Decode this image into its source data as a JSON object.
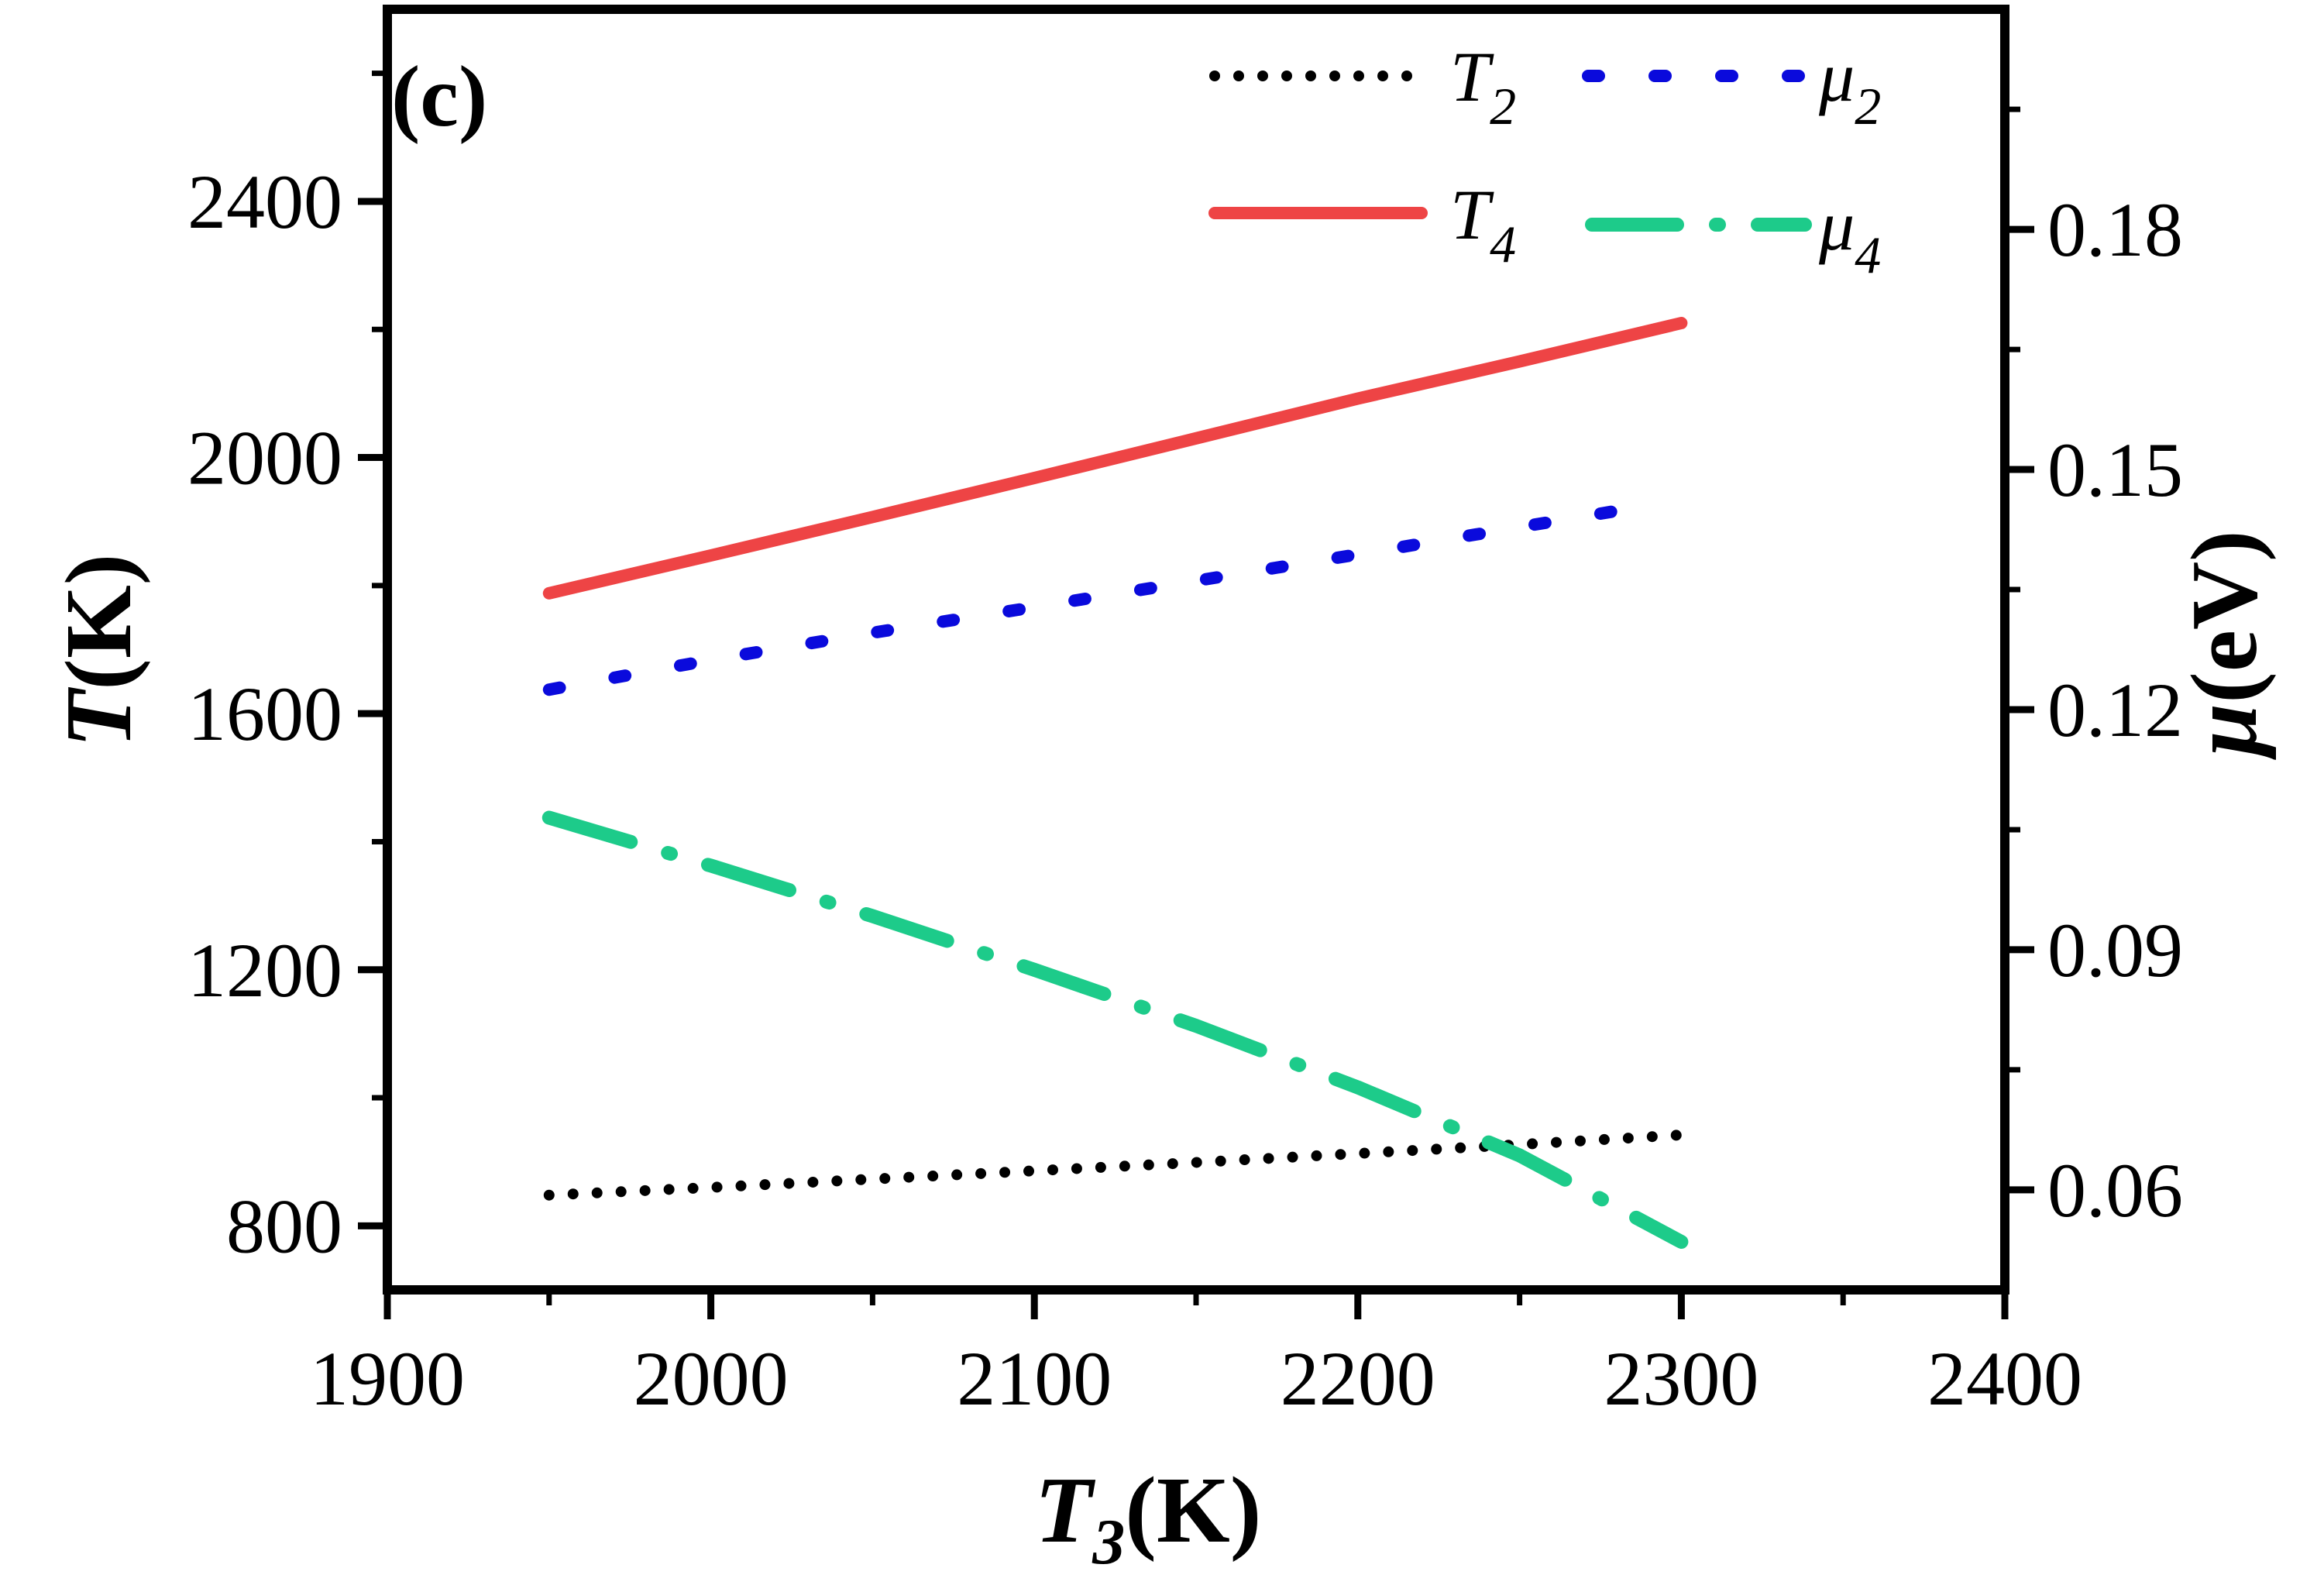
{
  "chart_data": {
    "type": "line",
    "panel_label": "(c)",
    "x_axis": {
      "label_main": "T",
      "label_sub": "3",
      "label_unit": "(K)",
      "range": [
        1900,
        2400
      ],
      "ticks": [
        1900,
        2000,
        2100,
        2200,
        2300,
        2400
      ],
      "tick_labels": [
        "1900",
        "2000",
        "2100",
        "2200",
        "2300",
        "2400"
      ]
    },
    "y_left": {
      "label_main": "T",
      "label_unit": "(K)",
      "range": [
        700,
        2700
      ],
      "ticks": [
        800,
        1200,
        1600,
        2000,
        2400
      ],
      "tick_labels": [
        "800",
        "1200",
        "1600",
        "2000",
        "2400"
      ]
    },
    "y_right": {
      "label_main": "μ",
      "label_unit": "(eV)",
      "range": [
        0.0475,
        0.2075
      ],
      "ticks": [
        0.06,
        0.09,
        0.12,
        0.15,
        0.18
      ],
      "tick_labels": [
        "0.06",
        "0.09",
        "0.12",
        "0.15",
        "0.18"
      ]
    },
    "series": [
      {
        "name": "T2",
        "legend_main": "T",
        "legend_sub": "2",
        "axis": "left",
        "style": "dotted",
        "color": "#000000",
        "x": [
          1950,
          2000,
          2050,
          2100,
          2150,
          2200,
          2250,
          2300
        ],
        "y": [
          848,
          860,
          873,
          886,
          899,
          913,
          927,
          942
        ]
      },
      {
        "name": "T4",
        "legend_main": "T",
        "legend_sub": "4",
        "axis": "left",
        "style": "solid",
        "color": "#EE4445",
        "x": [
          1950,
          2000,
          2050,
          2100,
          2150,
          2200,
          2250,
          2300
        ],
        "y": [
          1788,
          1847,
          1907,
          1968,
          2030,
          2092,
          2150,
          2210
        ]
      },
      {
        "name": "mu2",
        "legend_main": "μ",
        "legend_sub": "2",
        "axis": "right",
        "style": "dashed",
        "color": "#0A0ADC",
        "x": [
          1950,
          2000,
          2050,
          2100,
          2150,
          2200,
          2250,
          2290
        ],
        "y": [
          0.1225,
          0.1262,
          0.1296,
          0.1328,
          0.1361,
          0.1394,
          0.1428,
          0.1455
        ]
      },
      {
        "name": "mu4",
        "legend_main": "μ",
        "legend_sub": "4",
        "axis": "right",
        "style": "dashdot",
        "color": "#1DCB8A",
        "x": [
          1950,
          2000,
          2050,
          2100,
          2150,
          2200,
          2250,
          2300
        ],
        "y": [
          0.1065,
          0.1005,
          0.0942,
          0.0875,
          0.0805,
          0.0728,
          0.0643,
          0.0535
        ]
      }
    ]
  }
}
